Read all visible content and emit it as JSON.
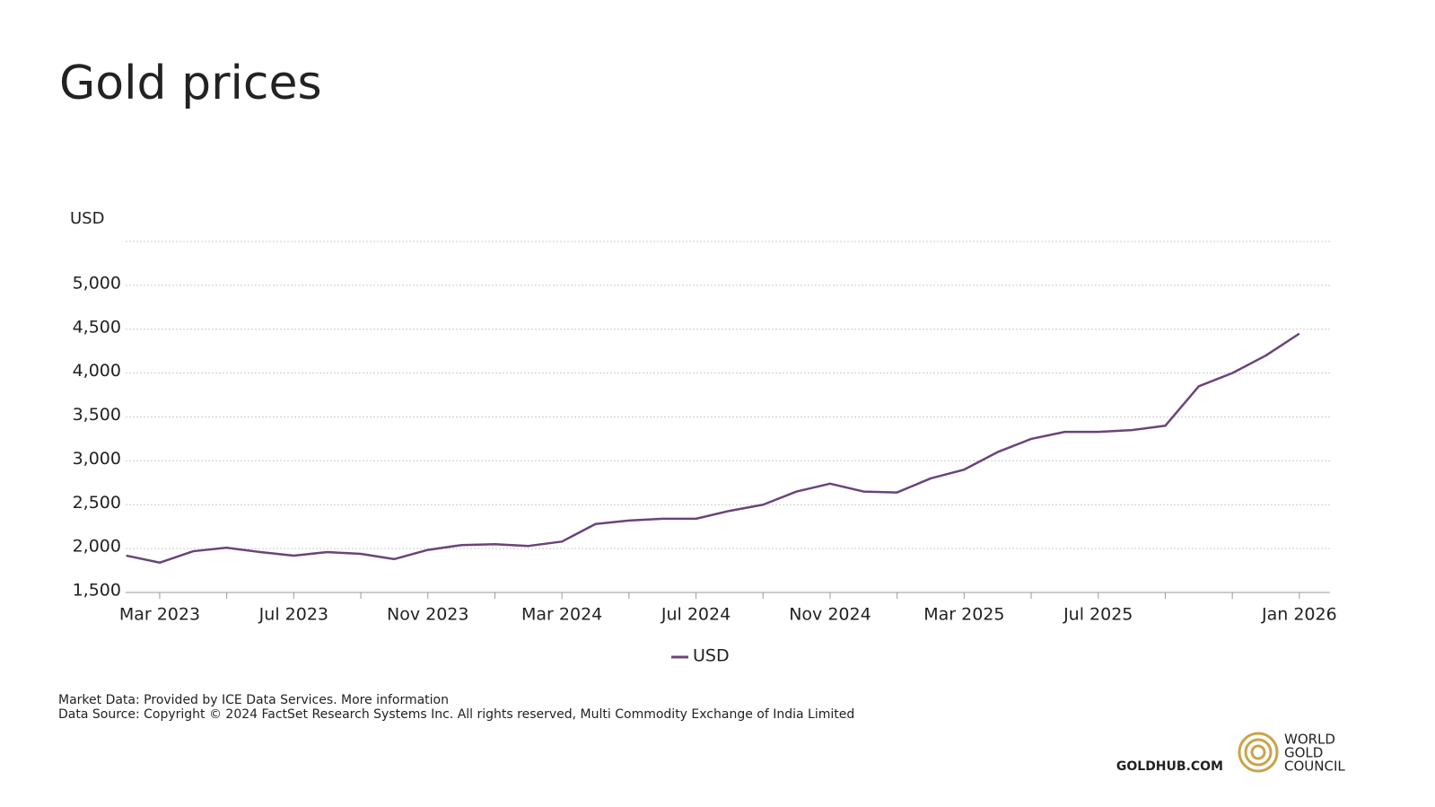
{
  "chart_data": {
    "type": "line",
    "title": "Gold prices",
    "y_label": "USD",
    "x": [
      "Feb 2023",
      "Mar 2023",
      "Apr 2023",
      "May 2023",
      "Jun 2023",
      "Jul 2023",
      "Aug 2023",
      "Sep 2023",
      "Oct 2023",
      "Nov 2023",
      "Dec 2023",
      "Jan 2024",
      "Feb 2024",
      "Mar 2024",
      "Apr 2024",
      "May 2024",
      "Jun 2024",
      "Jul 2024",
      "Aug 2024",
      "Sep 2024",
      "Oct 2024",
      "Nov 2024",
      "Dec 2024",
      "Jan 2025",
      "Feb 2025",
      "Mar 2025",
      "Apr 2025",
      "May 2025",
      "Jun 2025",
      "Jul 2025",
      "Aug 2025",
      "Sep 2025",
      "Oct 2025",
      "Nov 2025",
      "Dec 2025",
      "Jan 2026"
    ],
    "series": [
      {
        "name": "USD",
        "color": "#6a4479",
        "values": [
          1920,
          1840,
          1970,
          2010,
          1960,
          1920,
          1960,
          1940,
          1880,
          1985,
          2040,
          2050,
          2030,
          2080,
          2280,
          2320,
          2340,
          2340,
          2430,
          2500,
          2650,
          2740,
          2650,
          2640,
          2800,
          2900,
          3100,
          3250,
          3330,
          3330,
          3350,
          3400,
          3850,
          4000,
          4200,
          4450
        ]
      }
    ],
    "ylim": [
      1500,
      5500
    ],
    "yticks": [
      {
        "value": 1500,
        "label": "1,500"
      },
      {
        "value": 2000,
        "label": "2,000"
      },
      {
        "value": 2500,
        "label": "2,500"
      },
      {
        "value": 3000,
        "label": "3,000"
      },
      {
        "value": 3500,
        "label": "3,500"
      },
      {
        "value": 4000,
        "label": "4,000"
      },
      {
        "value": 4500,
        "label": "4,500"
      },
      {
        "value": 5000,
        "label": "5,000"
      }
    ],
    "xticks": [
      "Mar 2023",
      "Jul 2023",
      "Nov 2023",
      "Mar 2024",
      "Jul 2024",
      "Nov 2024",
      "Mar 2025",
      "Jul 2025",
      "Jan 2026"
    ],
    "grid": true,
    "legend": "bottom",
    "source_lines": [
      "Market Data: Provided by ICE Data Services. More information",
      "Data Source: Copyright © 2024 FactSet Research Systems Inc. All rights reserved, Multi Commodity Exchange of India Limited"
    ],
    "site": "GOLDHUB.COM",
    "logo_text": [
      "WORLD",
      "GOLD",
      "COUNCIL"
    ]
  }
}
